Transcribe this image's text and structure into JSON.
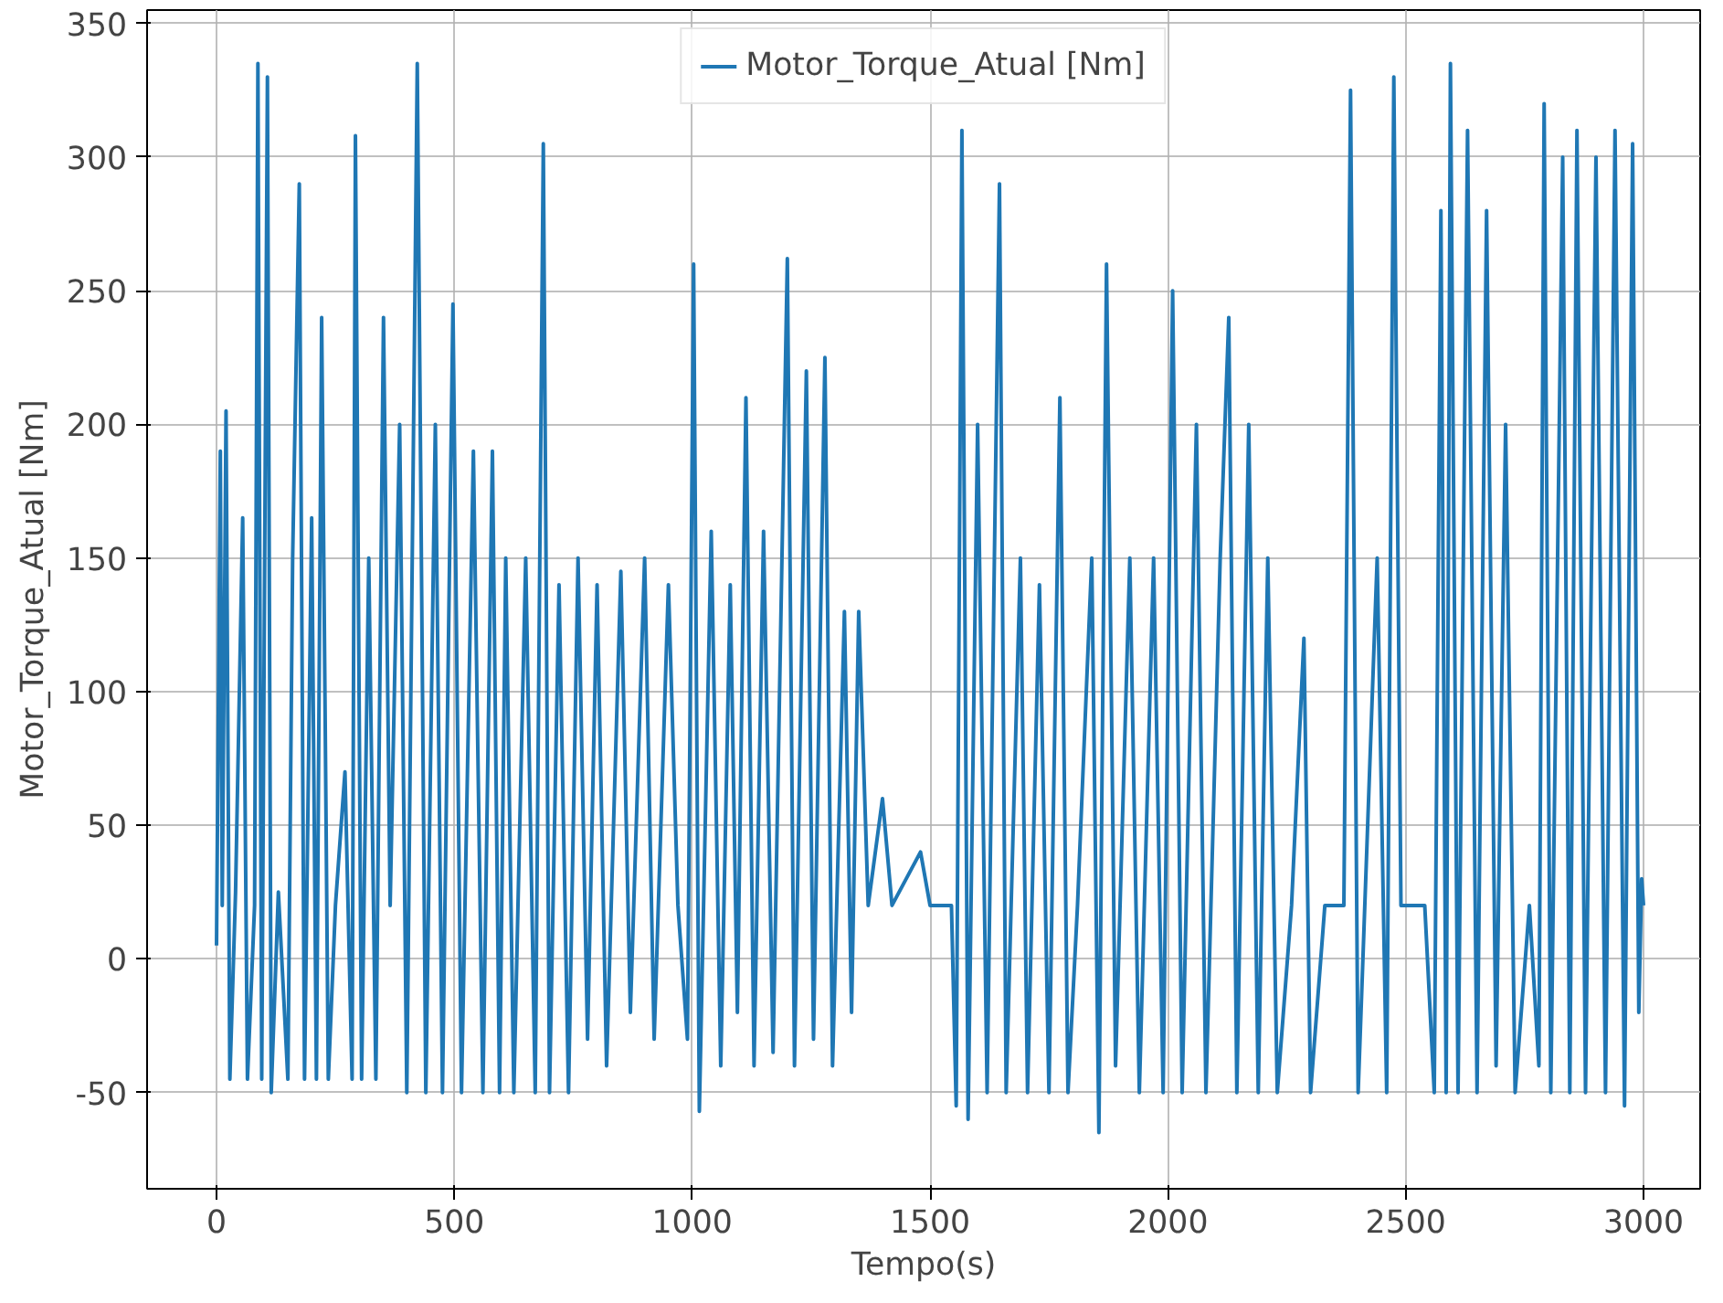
{
  "chart_data": {
    "type": "line",
    "xlabel": "Tempo(s)",
    "ylabel": "Motor_Torque_Atual [Nm]",
    "xlim": [
      -146,
      3119
    ],
    "ylim": [
      -86,
      355
    ],
    "xticks": [
      0,
      500,
      1000,
      1500,
      2000,
      2500,
      3000
    ],
    "yticks": [
      -50,
      0,
      50,
      100,
      150,
      200,
      250,
      300,
      350
    ],
    "grid": true,
    "legend": "top",
    "line_style": "solid",
    "marker": "none",
    "series": [
      {
        "name": "Motor_Torque_Atual [Nm]",
        "color": "#1f77b4",
        "x": [
          0,
          8,
          12,
          20,
          28,
          40,
          55,
          65,
          80,
          87,
          95,
          107,
          115,
          130,
          150,
          160,
          174,
          185,
          200,
          210,
          221,
          235,
          250,
          270,
          285,
          292,
          305,
          320,
          335,
          351,
          365,
          385,
          400,
          422,
          440,
          460,
          475,
          497,
          515,
          540,
          560,
          580,
          595,
          608,
          625,
          650,
          670,
          687,
          700,
          720,
          740,
          760,
          780,
          800,
          820,
          850,
          870,
          900,
          920,
          950,
          970,
          990,
          1003,
          1015,
          1040,
          1060,
          1080,
          1095,
          1113,
          1130,
          1150,
          1170,
          1200,
          1215,
          1240,
          1255,
          1279,
          1295,
          1320,
          1335,
          1350,
          1370,
          1400,
          1420,
          1480,
          1500,
          1545,
          1555,
          1567,
          1580,
          1600,
          1620,
          1646,
          1660,
          1690,
          1705,
          1730,
          1750,
          1773,
          1790,
          1810,
          1840,
          1855,
          1871,
          1890,
          1920,
          1940,
          1970,
          1990,
          2010,
          2030,
          2060,
          2080,
          2110,
          2128,
          2145,
          2170,
          2190,
          2210,
          2230,
          2260,
          2286,
          2300,
          2330,
          2370,
          2384,
          2400,
          2440,
          2460,
          2475,
          2490,
          2540,
          2560,
          2574,
          2585,
          2594,
          2610,
          2630,
          2650,
          2670,
          2690,
          2710,
          2730,
          2760,
          2780,
          2791,
          2805,
          2830,
          2845,
          2860,
          2878,
          2900,
          2920,
          2940,
          2960,
          2977,
          2990,
          2996,
          3000
        ],
        "values": [
          5,
          190,
          20,
          205,
          -45,
          25,
          165,
          -45,
          20,
          335,
          -45,
          330,
          -50,
          25,
          -45,
          150,
          290,
          -45,
          165,
          -45,
          240,
          -45,
          20,
          70,
          -45,
          308,
          -45,
          150,
          -45,
          240,
          20,
          200,
          -50,
          335,
          -50,
          200,
          -50,
          245,
          -50,
          190,
          -50,
          190,
          -50,
          150,
          -50,
          150,
          -50,
          305,
          -50,
          140,
          -50,
          150,
          -30,
          140,
          -40,
          145,
          -20,
          150,
          -30,
          140,
          20,
          -30,
          260,
          -57,
          160,
          -40,
          140,
          -20,
          210,
          -40,
          160,
          -35,
          262,
          -40,
          220,
          -30,
          225,
          -40,
          130,
          -20,
          130,
          20,
          60,
          20,
          40,
          20,
          20,
          -55,
          310,
          -60,
          200,
          -50,
          290,
          -50,
          150,
          -50,
          140,
          -50,
          210,
          -50,
          20,
          150,
          -65,
          260,
          -40,
          150,
          -50,
          150,
          -50,
          250,
          -50,
          200,
          -50,
          150,
          240,
          -50,
          200,
          -50,
          150,
          -50,
          20,
          120,
          -50,
          20,
          20,
          325,
          -50,
          150,
          -50,
          330,
          20,
          20,
          -50,
          280,
          -50,
          335,
          -50,
          310,
          -50,
          280,
          -40,
          200,
          -50,
          20,
          -40,
          320,
          -50,
          300,
          -50,
          310,
          -50,
          300,
          -50,
          310,
          -55,
          305,
          -20,
          30,
          20
        ]
      }
    ]
  }
}
